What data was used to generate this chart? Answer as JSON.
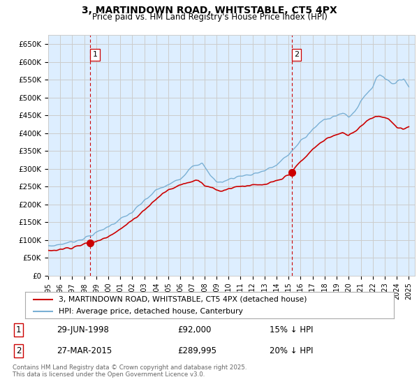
{
  "title": "3, MARTINDOWN ROAD, WHITSTABLE, CT5 4PX",
  "subtitle": "Price paid vs. HM Land Registry's House Price Index (HPI)",
  "legend_line1": "3, MARTINDOWN ROAD, WHITSTABLE, CT5 4PX (detached house)",
  "legend_line2": "HPI: Average price, detached house, Canterbury",
  "purchase1_date": "29-JUN-1998",
  "purchase1_price": "£92,000",
  "purchase1_hpi": "15% ↓ HPI",
  "purchase1_year": 1998.5,
  "purchase2_date": "27-MAR-2015",
  "purchase2_price": "£289,995",
  "purchase2_hpi": "20% ↓ HPI",
  "purchase2_year": 2015.25,
  "purchase1_value": 92000,
  "purchase2_value": 289995,
  "yticks": [
    0,
    50000,
    100000,
    150000,
    200000,
    250000,
    300000,
    350000,
    400000,
    450000,
    500000,
    550000,
    600000,
    650000
  ],
  "ytick_labels": [
    "£0",
    "£50K",
    "£100K",
    "£150K",
    "£200K",
    "£250K",
    "£300K",
    "£350K",
    "£400K",
    "£450K",
    "£500K",
    "£550K",
    "£600K",
    "£650K"
  ],
  "xmin": 1995,
  "xmax": 2025.5,
  "ymin": 0,
  "ymax": 675000,
  "hpi_color": "#7ab0d4",
  "price_color": "#cc0000",
  "vline_color": "#cc0000",
  "grid_color": "#cccccc",
  "bg_color": "#ffffff",
  "chart_bg_color": "#ddeeff",
  "footer": "Contains HM Land Registry data © Crown copyright and database right 2025.\nThis data is licensed under the Open Government Licence v3.0.",
  "xtick_years": [
    1995,
    1996,
    1997,
    1998,
    1999,
    2000,
    2001,
    2002,
    2003,
    2004,
    2005,
    2006,
    2007,
    2008,
    2009,
    2010,
    2011,
    2012,
    2013,
    2014,
    2015,
    2016,
    2017,
    2018,
    2019,
    2020,
    2021,
    2022,
    2023,
    2024,
    2025
  ]
}
